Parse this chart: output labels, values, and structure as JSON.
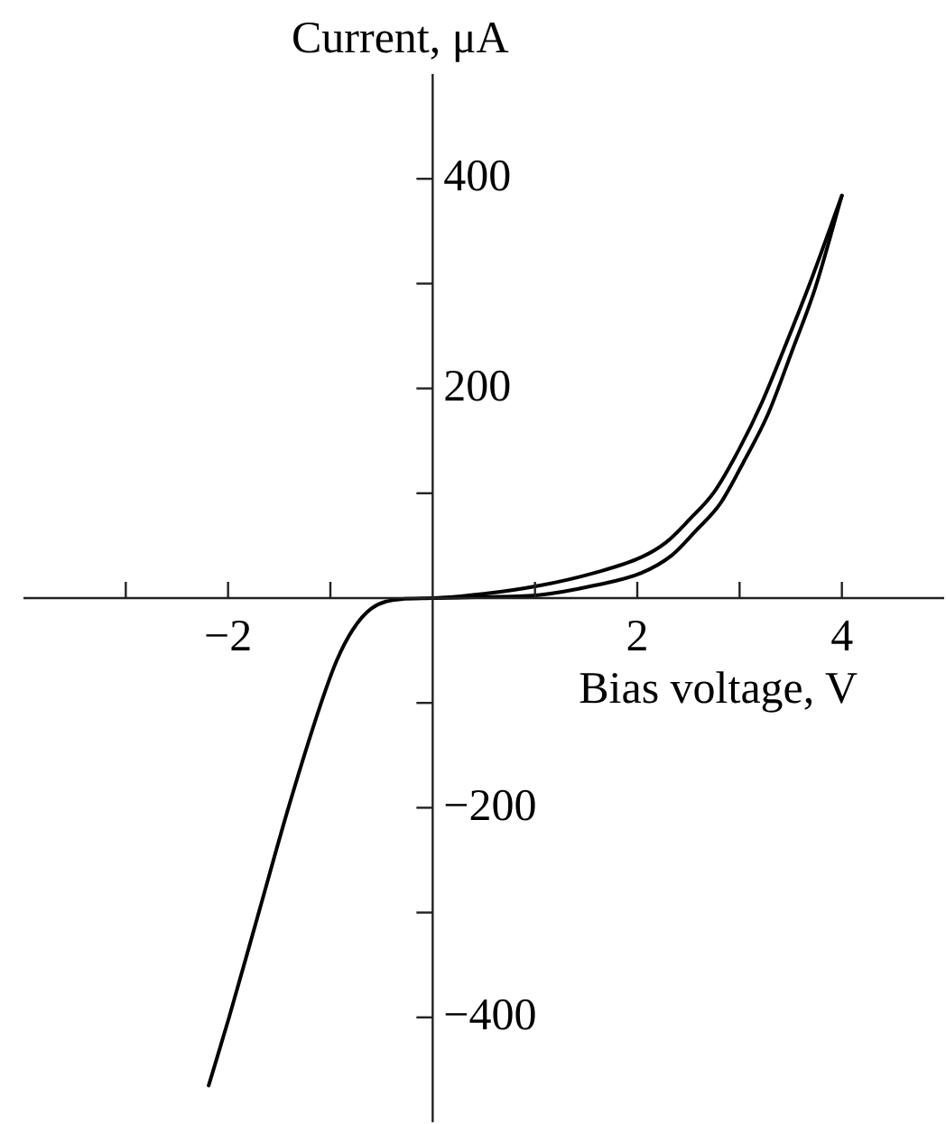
{
  "chart_data": {
    "type": "line",
    "xlabel": "Bias voltage, V",
    "ylabel": "Current, μA",
    "xlim": [
      -4,
      5
    ],
    "ylim": [
      -500,
      500
    ],
    "xticks": [
      {
        "value": -3,
        "label": null
      },
      {
        "value": -2,
        "label": "−2"
      },
      {
        "value": -1,
        "label": null
      },
      {
        "value": 1,
        "label": null
      },
      2,
      {
        "value": 3,
        "label": null
      },
      4
    ],
    "yticks": [
      {
        "value": -400,
        "label": "−400"
      },
      {
        "value": -300,
        "label": null
      },
      {
        "value": -200,
        "label": "−200"
      },
      {
        "value": -100,
        "label": null
      },
      {
        "value": 100,
        "label": null
      },
      200,
      {
        "value": 300,
        "label": null
      },
      400
    ],
    "series": [
      {
        "color": "#000000",
        "x": [
          -2.19,
          -1.99,
          -1.7,
          -1.41,
          -1.09,
          -0.94,
          -0.78,
          -0.6,
          -0.31,
          0,
          0.5,
          1.05,
          1.58,
          2.04,
          2.28,
          2.51,
          2.75,
          2.99,
          3.22,
          3.46,
          3.69,
          4
        ],
        "values": [
          -465,
          -400,
          -300,
          -200,
          -100,
          -60,
          -30,
          -10,
          -1,
          0,
          4,
          12,
          24,
          39,
          53,
          75,
          101,
          141,
          187,
          244,
          301,
          384
        ]
      },
      {
        "color": "#000000",
        "x": [
          0,
          0.5,
          1.05,
          1.58,
          2.04,
          2.34,
          2.57,
          2.81,
          3.04,
          3.28,
          3.51,
          3.74,
          4
        ],
        "values": [
          0,
          1,
          3,
          12,
          24,
          41,
          64,
          90,
          130,
          176,
          235,
          296,
          384
        ]
      }
    ]
  }
}
